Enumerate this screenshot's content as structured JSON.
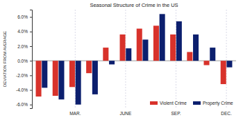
{
  "chart_data": {
    "type": "bar",
    "title": "Seasonal Structure of Crime in the US",
    "y_label": "DEVIATION FROM AVERAGE",
    "categories": [
      null,
      null,
      "MAR.",
      null,
      null,
      "JUNE",
      null,
      null,
      "SEP.",
      null,
      null,
      "DEC."
    ],
    "series": [
      {
        "name": "Violent Crime",
        "color": "#d8322b",
        "values": [
          -4.9,
          -4.8,
          -3.6,
          -1.7,
          1.8,
          3.6,
          4.4,
          4.8,
          3.6,
          1.2,
          -0.6,
          -3.2
        ]
      },
      {
        "name": "Property Crime",
        "color": "#0c1f6e",
        "values": [
          -3.7,
          -5.3,
          -6.0,
          -4.6,
          -0.5,
          1.7,
          2.9,
          6.4,
          5.4,
          3.6,
          1.8,
          -0.9
        ]
      }
    ],
    "ylim": [
      -6.5,
      7
    ],
    "yticks": [
      {
        "value": -6,
        "label": "-6.0%"
      },
      {
        "value": -4,
        "label": "-4.0%"
      },
      {
        "value": -2,
        "label": "-2.0%"
      },
      {
        "value": 0,
        "label": "0.0%"
      },
      {
        "value": 2,
        "label": "2.0%"
      },
      {
        "value": 4,
        "label": "4.0%"
      },
      {
        "value": 6,
        "label": "6.0%"
      }
    ],
    "grid": true,
    "legend": "lower right"
  }
}
